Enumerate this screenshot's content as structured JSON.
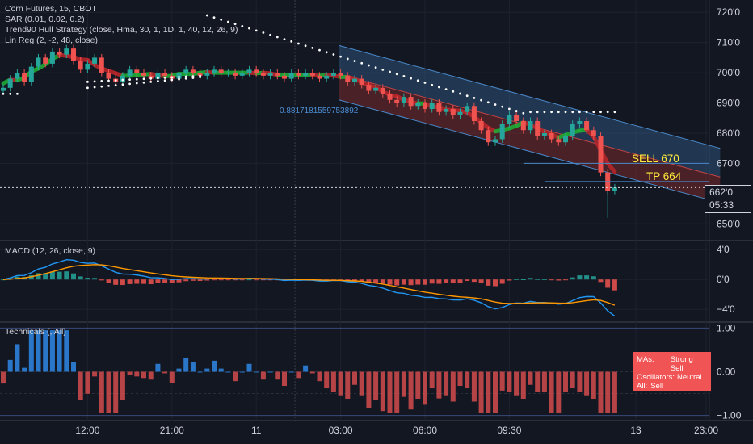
{
  "legend": {
    "symbol": "Corn Futures, 15, CBOT",
    "sar": "SAR (0.01, 0.02, 0.2)",
    "hull": "Trend90 Hull Strategy (close, Hma, 30, 1, 1D, 1, 40, 12, 26, 9)",
    "linreg": "Lin Reg (2, -2, 48, close)",
    "macd": "MACD (12, 26, close, 9)",
    "technicals": "Technicals (, All)"
  },
  "annotations": {
    "linreg_value": "0.8817181559753892",
    "sell": "SELL 670",
    "tp": "TP 664"
  },
  "price_box": {
    "price": "662'0",
    "countdown": "05:33"
  },
  "technicals_box": {
    "mas_k": "MAs:",
    "mas_v": "Strong Sell",
    "osc_k": "Oscillators:",
    "osc_v": "Neutral",
    "all_k": "All:",
    "all_v": "Sell"
  },
  "colors": {
    "background": "#131722",
    "up_candle": "#26a69a",
    "down_candle": "#ef5350",
    "hull_up": "#1faa35",
    "hull_down": "#b5262a",
    "channel_upper": "#3a6fa8",
    "channel_lower": "#8c2f2f",
    "macd_line": "#2196f3",
    "signal_line": "#ff9800",
    "tech_up": "#2b7bd2",
    "tech_down": "#e05050",
    "sell_label": "#ffeb3b",
    "tp_label": "#ffeb3b"
  },
  "chart_data": [
    {
      "type": "candlestick",
      "name": "price",
      "ylim": [
        645,
        723
      ],
      "y_ticks": [
        {
          "v": 720,
          "t": "720'0"
        },
        {
          "v": 710,
          "t": "710'0"
        },
        {
          "v": 700,
          "t": "700'0"
        },
        {
          "v": 690,
          "t": "690'0"
        },
        {
          "v": 680,
          "t": "680'0"
        },
        {
          "v": 670,
          "t": "670'0"
        },
        {
          "v": 650,
          "t": "650'0"
        }
      ],
      "x_ticks": [
        {
          "i": 12,
          "t": "12:00"
        },
        {
          "i": 24,
          "t": "21:00"
        },
        {
          "i": 36,
          "t": "11"
        },
        {
          "i": 48,
          "t": "03:00"
        },
        {
          "i": 60,
          "t": "06:00"
        },
        {
          "i": 72,
          "t": "09:30"
        },
        {
          "i": 90,
          "t": "13"
        },
        {
          "i": 100,
          "t": "23:00"
        }
      ],
      "close": [
        695,
        698,
        700,
        697,
        702,
        705,
        703,
        707,
        706,
        708,
        704,
        701,
        703,
        705,
        700,
        698,
        697,
        699,
        701,
        700,
        699,
        698,
        700,
        699,
        698,
        700,
        701,
        700,
        699,
        700,
        701,
        700,
        700,
        699,
        700,
        701,
        700,
        699,
        700,
        699,
        698,
        700,
        699,
        700,
        699,
        698,
        699,
        700,
        699,
        697,
        698,
        696,
        694,
        695,
        693,
        691,
        690,
        692,
        689,
        690,
        688,
        690,
        687,
        688,
        686,
        687,
        689,
        684,
        681,
        677,
        678,
        683,
        686,
        684,
        681,
        684,
        679,
        680,
        678,
        677,
        679,
        683,
        684,
        681,
        679,
        667,
        661,
        662
      ],
      "last_price": 662,
      "sell_level": 670,
      "tp_level": 664,
      "channel": {
        "start_index": 48,
        "upper_start": 709,
        "mid_start": 699.5,
        "lower_start": 691,
        "slope_per_bar": -0.63
      }
    },
    {
      "type": "line",
      "name": "MACD",
      "ylim": [
        -5.5,
        5
      ],
      "y_ticks": [
        {
          "v": 4,
          "t": "4'0"
        },
        {
          "v": 0,
          "t": "0'0"
        },
        {
          "v": -4,
          "t": "−4'0"
        }
      ],
      "series": [
        "macd",
        "signal",
        "histogram"
      ]
    },
    {
      "type": "bar",
      "name": "Technicals",
      "ylim": [
        -1.1,
        1.1
      ],
      "y_ticks": [
        {
          "v": 1,
          "t": "1.00"
        },
        {
          "v": 0,
          "t": "0.00"
        },
        {
          "v": -1,
          "t": "−1.00"
        }
      ]
    }
  ]
}
